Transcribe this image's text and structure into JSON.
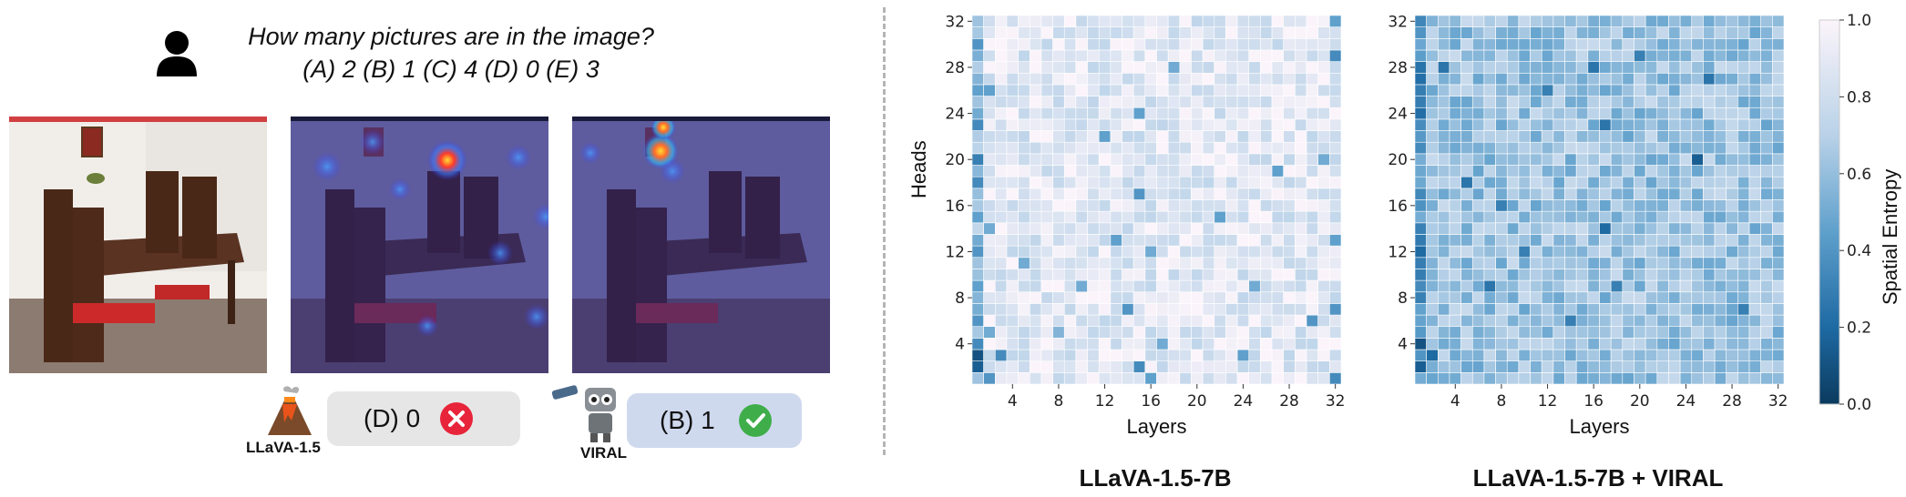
{
  "question": {
    "line1": "How many pictures are in the image?",
    "line2": "(A) 2 (B) 1 (C) 4 (D) 0 (E) 3"
  },
  "models": {
    "baseline": {
      "name": "LLaVA-1.5",
      "answer": "(D) 0",
      "correct": false
    },
    "viral": {
      "name": "VIRAL",
      "answer": "(B) 1",
      "correct": true
    }
  },
  "colors": {
    "wrong": "#e8243a",
    "right": "#3fae4a",
    "baseline_box": "#e6e6e6",
    "viral_box": "#cfd9ee",
    "divider": "#b5b5b5"
  },
  "chart_data": [
    {
      "type": "heatmap",
      "title": "LLaVA-1.5-7B",
      "xlabel": "Layers",
      "ylabel": "Heads",
      "x_ticks": [
        4,
        8,
        12,
        16,
        20,
        24,
        28,
        32
      ],
      "y_ticks": [
        4,
        8,
        12,
        16,
        20,
        24,
        28,
        32
      ],
      "xlim": [
        1,
        32
      ],
      "ylim": [
        1,
        32
      ],
      "mean_entropy": 0.88,
      "low_entropy_cells": [
        [
          1,
          2,
          0.15
        ],
        [
          1,
          3,
          0.1
        ],
        [
          1,
          4,
          0.35
        ],
        [
          1,
          6,
          0.4
        ],
        [
          1,
          9,
          0.45
        ],
        [
          1,
          12,
          0.4
        ],
        [
          1,
          15,
          0.45
        ],
        [
          1,
          18,
          0.35
        ],
        [
          1,
          20,
          0.3
        ],
        [
          1,
          23,
          0.35
        ],
        [
          1,
          26,
          0.45
        ],
        [
          1,
          30,
          0.4
        ],
        [
          2,
          1,
          0.4
        ],
        [
          2,
          5,
          0.5
        ],
        [
          2,
          14,
          0.5
        ],
        [
          2,
          26,
          0.45
        ],
        [
          3,
          3,
          0.35
        ],
        [
          5,
          11,
          0.5
        ],
        [
          8,
          5,
          0.55
        ],
        [
          10,
          9,
          0.5
        ],
        [
          12,
          22,
          0.45
        ],
        [
          13,
          13,
          0.45
        ],
        [
          14,
          7,
          0.4
        ],
        [
          15,
          2,
          0.35
        ],
        [
          15,
          17,
          0.4
        ],
        [
          15,
          24,
          0.45
        ],
        [
          16,
          1,
          0.45
        ],
        [
          16,
          12,
          0.5
        ],
        [
          17,
          4,
          0.5
        ],
        [
          18,
          28,
          0.5
        ],
        [
          22,
          15,
          0.45
        ],
        [
          24,
          3,
          0.45
        ],
        [
          25,
          9,
          0.5
        ],
        [
          27,
          19,
          0.45
        ],
        [
          30,
          6,
          0.4
        ],
        [
          31,
          20,
          0.5
        ],
        [
          32,
          1,
          0.35
        ],
        [
          32,
          7,
          0.4
        ],
        [
          32,
          13,
          0.45
        ],
        [
          32,
          29,
          0.35
        ],
        [
          32,
          32,
          0.45
        ]
      ]
    },
    {
      "type": "heatmap",
      "title": "LLaVA-1.5-7B + VIRAL",
      "xlabel": "Layers",
      "ylabel": "",
      "x_ticks": [
        4,
        8,
        12,
        16,
        20,
        24,
        28,
        32
      ],
      "y_ticks": [
        4,
        8,
        12,
        16,
        20,
        24,
        28,
        32
      ],
      "xlim": [
        1,
        32
      ],
      "ylim": [
        1,
        32
      ],
      "mean_entropy": 0.62,
      "low_entropy_cells": [
        [
          1,
          4,
          0.1
        ],
        [
          1,
          2,
          0.15
        ],
        [
          1,
          12,
          0.2
        ],
        [
          2,
          3,
          0.2
        ],
        [
          3,
          28,
          0.25
        ],
        [
          5,
          18,
          0.25
        ],
        [
          7,
          9,
          0.25
        ],
        [
          8,
          16,
          0.3
        ],
        [
          10,
          12,
          0.3
        ],
        [
          12,
          26,
          0.3
        ],
        [
          14,
          6,
          0.3
        ],
        [
          16,
          28,
          0.25
        ],
        [
          17,
          14,
          0.2
        ],
        [
          17,
          23,
          0.25
        ],
        [
          18,
          9,
          0.3
        ],
        [
          20,
          29,
          0.3
        ],
        [
          25,
          20,
          0.15
        ],
        [
          26,
          27,
          0.25
        ],
        [
          29,
          7,
          0.3
        ]
      ]
    }
  ],
  "colorbar": {
    "label": "Spatial Entropy",
    "ticks": [
      "0.0",
      "0.2",
      "0.4",
      "0.6",
      "0.8",
      "1.0"
    ],
    "range": [
      0,
      1
    ]
  }
}
